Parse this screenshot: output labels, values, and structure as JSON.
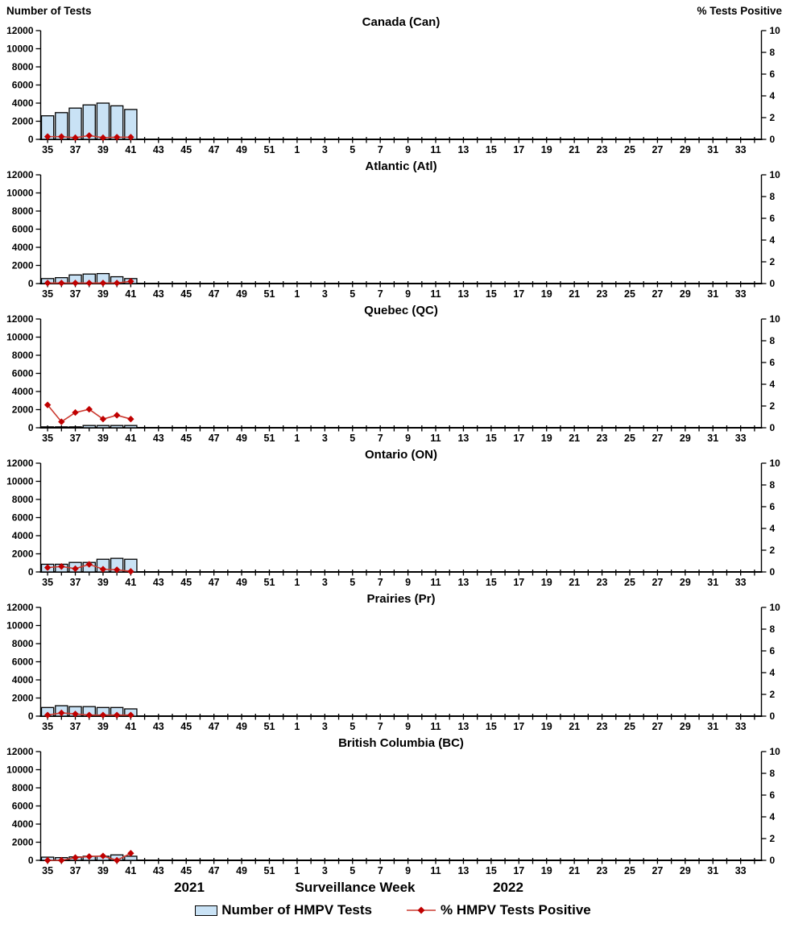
{
  "header": {
    "left_axis_label": "Number of Tests",
    "right_axis_label": "% Tests Positive"
  },
  "x_axis": {
    "year_left": "2021",
    "title": "Surveillance Week",
    "year_right": "2022"
  },
  "legend": {
    "tests_label": "Number of HMPV Tests",
    "pct_label": "% HMPV Tests Positive"
  },
  "colors": {
    "bar_fill": "#C9E2F5",
    "bar_stroke": "#000000",
    "line": "#CB3B31",
    "marker": "#C00000",
    "axis": "#000000"
  },
  "chart_data": {
    "type": "bar",
    "subtype": "bar+line combo, 6 stacked regional panels",
    "x": {
      "weeks": [
        35,
        36,
        37,
        38,
        39,
        40,
        41,
        42,
        43,
        44,
        45,
        46,
        47,
        48,
        49,
        50,
        51,
        52,
        1,
        2,
        3,
        4,
        5,
        6,
        7,
        8,
        9,
        10,
        11,
        12,
        13,
        14,
        15,
        16,
        17,
        18,
        19,
        20,
        21,
        22,
        23,
        24,
        25,
        26,
        27,
        28,
        29,
        30,
        31,
        32,
        33,
        34
      ],
      "tick_label_rule": "odd weeks labeled",
      "year_left": "2021",
      "year_right": "2022"
    },
    "left_axis": {
      "label": "Number of Tests",
      "range": [
        0,
        12000
      ],
      "tick_interval": 2000
    },
    "right_axis": {
      "label": "% Tests Positive",
      "range": [
        0,
        10
      ],
      "tick_interval": 2
    },
    "series_weeks": [
      35,
      36,
      37,
      38,
      39,
      40,
      41
    ],
    "series_names": [
      "Number of HMPV Tests",
      "% HMPV Tests Positive"
    ],
    "panels": [
      {
        "id": "canada",
        "title": "Canada (Can)",
        "tests": [
          2600,
          2950,
          3450,
          3800,
          4000,
          3700,
          3300
        ],
        "pct_positive": [
          0.25,
          0.25,
          0.15,
          0.35,
          0.15,
          0.2,
          0.2
        ]
      },
      {
        "id": "atlantic",
        "title": "Atlantic (Atl)",
        "tests": [
          550,
          650,
          950,
          1050,
          1100,
          750,
          550
        ],
        "pct_positive": [
          0.05,
          0.05,
          0.05,
          0.05,
          0.05,
          0.05,
          0.2
        ]
      },
      {
        "id": "quebec",
        "title": "Quebec (QC)",
        "tests": [
          100,
          100,
          100,
          250,
          250,
          250,
          250
        ],
        "pct_positive": [
          2.1,
          0.55,
          1.4,
          1.7,
          0.8,
          1.15,
          0.8
        ]
      },
      {
        "id": "ontario",
        "title": "Ontario (ON)",
        "tests": [
          850,
          850,
          1050,
          1050,
          1400,
          1500,
          1400
        ],
        "pct_positive": [
          0.4,
          0.5,
          0.3,
          0.7,
          0.25,
          0.2,
          0.05
        ]
      },
      {
        "id": "prairies",
        "title": "Prairies (Pr)",
        "tests": [
          950,
          1150,
          1050,
          1050,
          950,
          950,
          800
        ],
        "pct_positive": [
          0.1,
          0.3,
          0.2,
          0.1,
          0.1,
          0.1,
          0.1
        ]
      },
      {
        "id": "british-columbia",
        "title": "British Columbia (BC)",
        "tests": [
          350,
          300,
          380,
          450,
          450,
          600,
          450
        ],
        "pct_positive": [
          0,
          0,
          0.25,
          0.35,
          0.4,
          0,
          0.65
        ]
      }
    ]
  }
}
